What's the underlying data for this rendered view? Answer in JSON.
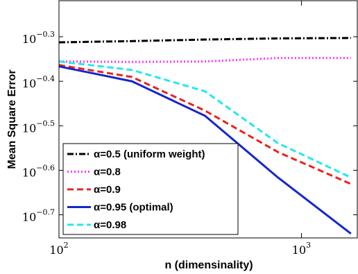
{
  "chart_data": {
    "type": "line",
    "xlabel": "n (dimensinality)",
    "ylabel": "Mean Square Error",
    "x": [
      100,
      200,
      400,
      800,
      1600
    ],
    "xlim": [
      100,
      1700
    ],
    "ylim": [
      0.177,
      0.604
    ],
    "xlog": true,
    "ylog": true,
    "xticks": [
      {
        "value": 100,
        "label": "10^2"
      },
      {
        "value": 1000,
        "label": "10^3"
      }
    ],
    "yticks": [
      {
        "value": 0.1995,
        "label": "10^-0.7"
      },
      {
        "value": 0.2512,
        "label": "10^-0.6"
      },
      {
        "value": 0.3162,
        "label": "10^-0.5"
      },
      {
        "value": 0.3981,
        "label": "10^-0.4"
      },
      {
        "value": 0.5012,
        "label": "10^-0.3"
      }
    ],
    "legend": "lower left",
    "series": [
      {
        "name": "α=0.5 (uniform weight)",
        "color": "#000000",
        "dash": "dashdot",
        "values": [
          0.487,
          0.49,
          0.494,
          0.497,
          0.498
        ]
      },
      {
        "name": "α=0.8",
        "color": "#ff33ff",
        "dash": "dotted",
        "values": [
          0.441,
          0.44,
          0.441,
          0.449,
          0.449
        ]
      },
      {
        "name": "α=0.9",
        "color": "#e8231c",
        "dash": "dashed",
        "values": [
          0.433,
          0.407,
          0.342,
          0.276,
          0.234
        ]
      },
      {
        "name": "α=0.95 (optimal)",
        "color": "#1426cc",
        "dash": "solid",
        "values": [
          0.43,
          0.398,
          0.333,
          0.242,
          0.181
        ]
      },
      {
        "name": "α=0.98",
        "color": "#22e8f0",
        "dash": "dashed",
        "values": [
          0.441,
          0.422,
          0.378,
          0.289,
          0.242
        ]
      }
    ]
  }
}
